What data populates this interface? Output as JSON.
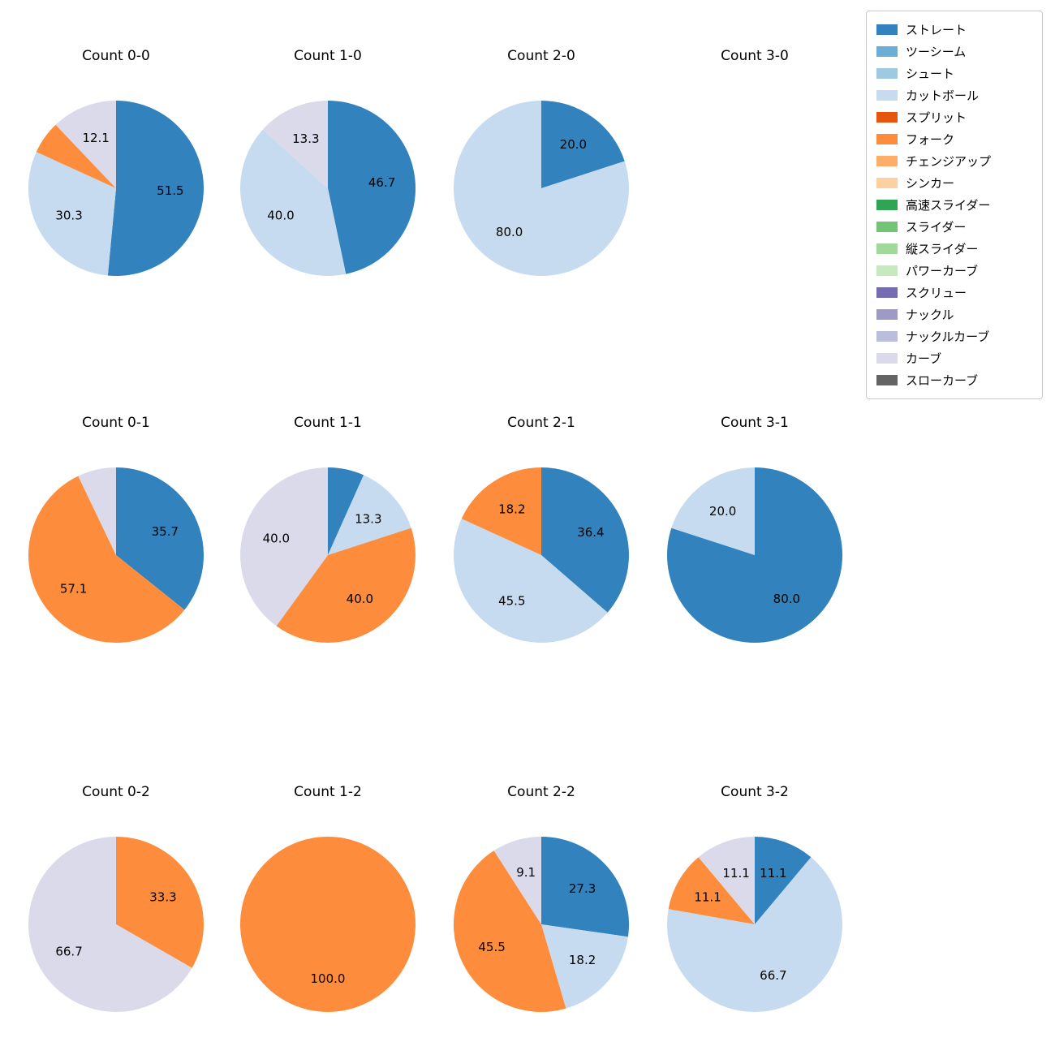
{
  "palette": {
    "ストレート": "#3182bd",
    "ツーシーム": "#6baed6",
    "シュート": "#9ecae1",
    "カットボール": "#c6dbef",
    "スプリット": "#e6550d",
    "フォーク": "#fd8d3c",
    "チェンジアップ": "#fdae6b",
    "シンカー": "#fdd0a2",
    "高速スライダー": "#31a354",
    "スライダー": "#74c476",
    "縦スライダー": "#a1d99b",
    "パワーカーブ": "#c7e9c0",
    "スクリュー": "#756bb1",
    "ナックル": "#9e9ac8",
    "ナックルカーブ": "#bcbddc",
    "カーブ": "#dadaeb",
    "スローカーブ": "#636363"
  },
  "legend": {
    "position": "top-right",
    "items": [
      "ストレート",
      "ツーシーム",
      "シュート",
      "カットボール",
      "スプリット",
      "フォーク",
      "チェンジアップ",
      "シンカー",
      "高速スライダー",
      "スライダー",
      "縦スライダー",
      "パワーカーブ",
      "スクリュー",
      "ナックル",
      "ナックルカーブ",
      "カーブ",
      "スローカーブ"
    ],
    "border_color": "#c9c9c9"
  },
  "chart_data": [
    {
      "type": "pie",
      "title": "Count 0-0",
      "start_angle_deg": 0,
      "clockwise": true,
      "slices": [
        {
          "label": "ストレート",
          "value": 51.5,
          "pct_label": "51.5"
        },
        {
          "label": "カットボール",
          "value": 30.3,
          "pct_label": "30.3"
        },
        {
          "label": "フォーク",
          "value": 6.1,
          "pct_label": null
        },
        {
          "label": "カーブ",
          "value": 12.1,
          "pct_label": "12.1"
        }
      ]
    },
    {
      "type": "pie",
      "title": "Count 1-0",
      "start_angle_deg": 0,
      "clockwise": true,
      "slices": [
        {
          "label": "ストレート",
          "value": 46.7,
          "pct_label": "46.7"
        },
        {
          "label": "カットボール",
          "value": 40.0,
          "pct_label": "40.0"
        },
        {
          "label": "カーブ",
          "value": 13.3,
          "pct_label": "13.3"
        }
      ]
    },
    {
      "type": "pie",
      "title": "Count 2-0",
      "start_angle_deg": 0,
      "clockwise": true,
      "slices": [
        {
          "label": "ストレート",
          "value": 20.0,
          "pct_label": "20.0"
        },
        {
          "label": "カットボール",
          "value": 80.0,
          "pct_label": "80.0"
        }
      ]
    },
    {
      "type": "pie",
      "title": "Count 3-0",
      "start_angle_deg": 0,
      "clockwise": true,
      "slices": []
    },
    {
      "type": "pie",
      "title": "Count 0-1",
      "start_angle_deg": 0,
      "clockwise": true,
      "slices": [
        {
          "label": "ストレート",
          "value": 35.7,
          "pct_label": "35.7"
        },
        {
          "label": "フォーク",
          "value": 57.1,
          "pct_label": "57.1"
        },
        {
          "label": "カーブ",
          "value": 7.1,
          "pct_label": null
        }
      ]
    },
    {
      "type": "pie",
      "title": "Count 1-1",
      "start_angle_deg": 0,
      "clockwise": true,
      "slices": [
        {
          "label": "ストレート",
          "value": 6.7,
          "pct_label": null
        },
        {
          "label": "カットボール",
          "value": 13.3,
          "pct_label": "13.3"
        },
        {
          "label": "フォーク",
          "value": 40.0,
          "pct_label": "40.0"
        },
        {
          "label": "カーブ",
          "value": 40.0,
          "pct_label": "40.0"
        }
      ]
    },
    {
      "type": "pie",
      "title": "Count 2-1",
      "start_angle_deg": 0,
      "clockwise": true,
      "slices": [
        {
          "label": "ストレート",
          "value": 36.4,
          "pct_label": "36.4"
        },
        {
          "label": "カットボール",
          "value": 45.5,
          "pct_label": "45.5"
        },
        {
          "label": "フォーク",
          "value": 18.2,
          "pct_label": "18.2"
        }
      ]
    },
    {
      "type": "pie",
      "title": "Count 3-1",
      "start_angle_deg": 0,
      "clockwise": true,
      "slices": [
        {
          "label": "ストレート",
          "value": 80.0,
          "pct_label": "80.0"
        },
        {
          "label": "カットボール",
          "value": 20.0,
          "pct_label": "20.0"
        }
      ]
    },
    {
      "type": "pie",
      "title": "Count 0-2",
      "start_angle_deg": 0,
      "clockwise": true,
      "slices": [
        {
          "label": "フォーク",
          "value": 33.3,
          "pct_label": "33.3"
        },
        {
          "label": "カーブ",
          "value": 66.7,
          "pct_label": "66.7"
        }
      ]
    },
    {
      "type": "pie",
      "title": "Count 1-2",
      "start_angle_deg": 0,
      "clockwise": true,
      "slices": [
        {
          "label": "フォーク",
          "value": 100.0,
          "pct_label": "100.0"
        }
      ]
    },
    {
      "type": "pie",
      "title": "Count 2-2",
      "start_angle_deg": 0,
      "clockwise": true,
      "slices": [
        {
          "label": "ストレート",
          "value": 27.3,
          "pct_label": "27.3"
        },
        {
          "label": "カットボール",
          "value": 18.2,
          "pct_label": "18.2"
        },
        {
          "label": "フォーク",
          "value": 45.5,
          "pct_label": "45.5"
        },
        {
          "label": "カーブ",
          "value": 9.1,
          "pct_label": "9.1"
        }
      ]
    },
    {
      "type": "pie",
      "title": "Count 3-2",
      "start_angle_deg": 0,
      "clockwise": true,
      "slices": [
        {
          "label": "ストレート",
          "value": 11.1,
          "pct_label": "11.1"
        },
        {
          "label": "カットボール",
          "value": 66.7,
          "pct_label": "66.7"
        },
        {
          "label": "フォーク",
          "value": 11.1,
          "pct_label": "11.1"
        },
        {
          "label": "カーブ",
          "value": 11.1,
          "pct_label": "11.1"
        }
      ]
    }
  ]
}
